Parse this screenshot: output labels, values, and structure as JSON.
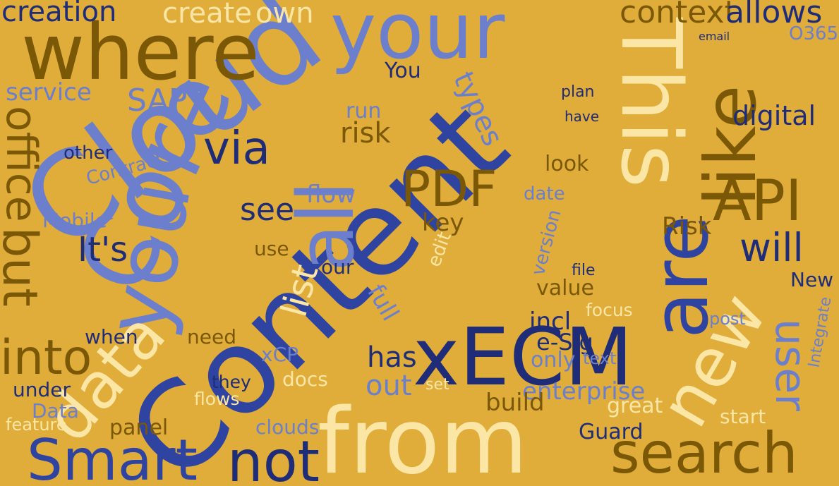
{
  "words": [
    "Cloud",
    "Content",
    "Core",
    "where",
    "your",
    "This",
    "like",
    "you",
    "all",
    "are",
    "API",
    "xECM",
    "from",
    "new",
    "user",
    "search",
    "Smart",
    "not",
    "data",
    "into",
    "office",
    "but",
    "PDF",
    "will",
    "context",
    "allows",
    "creation",
    "create",
    "own",
    "service",
    "SAP",
    "via",
    "It's",
    "see",
    "has",
    "out",
    "enterprise",
    "digital",
    "Risk",
    "New",
    "O365",
    "You",
    "types",
    "list",
    "key",
    "flow",
    "risk",
    "run",
    "look",
    "value",
    "focus",
    "incl",
    "e-Sig",
    "only",
    "build",
    "great",
    "Guard",
    "start",
    "clouds",
    "panel",
    "Data",
    "under",
    "feature",
    "need",
    "when",
    "Mobile",
    "Contract",
    "other",
    "use",
    "our",
    "docs",
    "xCP",
    "they",
    "flows",
    "text",
    "post",
    "plan",
    "have",
    "version",
    "full",
    "email",
    "date",
    "edit",
    "file",
    "set",
    "Integrate"
  ]
}
